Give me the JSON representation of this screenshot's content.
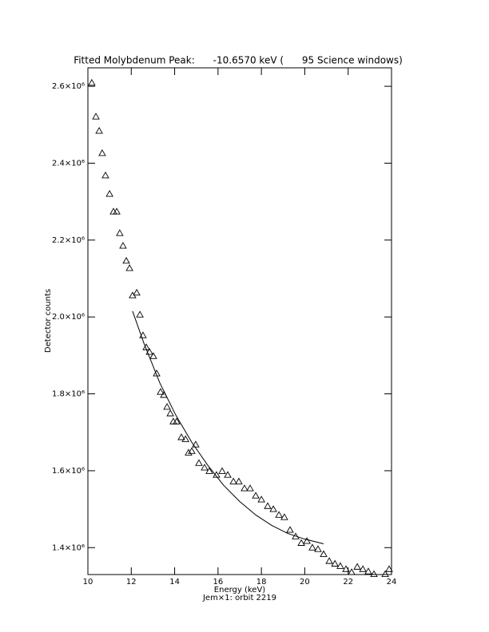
{
  "chart_data": {
    "type": "scatter",
    "title": "Fitted Molybdenum Peak:      -10.6570 keV (      95 Science windows)",
    "xlabel": "Energy (keV)",
    "caption": "Jem×1: orbit 2219",
    "ylabel": "Detector counts",
    "xlim": [
      10,
      24
    ],
    "ylim": [
      1330000,
      2648000
    ],
    "xticks": [
      10,
      12,
      14,
      16,
      18,
      20,
      22,
      24
    ],
    "yticks": [
      {
        "value": 1400000,
        "label": "1.4×10⁶"
      },
      {
        "value": 1600000,
        "label": "1.6×10⁶"
      },
      {
        "value": 1800000,
        "label": "1.8×10⁶"
      },
      {
        "value": 2000000,
        "label": "2.0×10⁶"
      },
      {
        "value": 2200000,
        "label": "2.2×10⁶"
      },
      {
        "value": 2400000,
        "label": "2.4×10⁶"
      },
      {
        "value": 2600000,
        "label": "2.6×10⁶"
      }
    ],
    "series": [
      {
        "type": "scatter",
        "marker": "triangle",
        "color": "#000000",
        "x": [
          10.18,
          10.37,
          10.52,
          10.66,
          10.81,
          11.0,
          11.18,
          11.33,
          11.47,
          11.62,
          11.77,
          11.92,
          12.06,
          12.25,
          12.4,
          12.54,
          12.69,
          12.84,
          13.02,
          13.17,
          13.35,
          13.5,
          13.65,
          13.8,
          13.94,
          14.09,
          14.31,
          14.5,
          14.64,
          14.79,
          14.97,
          15.12,
          15.38,
          15.6,
          15.93,
          16.19,
          16.45,
          16.71,
          16.96,
          17.22,
          17.48,
          17.74,
          18.0,
          18.29,
          18.55,
          18.81,
          19.06,
          19.32,
          19.58,
          19.84,
          20.1,
          20.35,
          20.61,
          20.87,
          21.13,
          21.39,
          21.64,
          21.9,
          22.16,
          22.42,
          22.68,
          22.93,
          23.19,
          23.71,
          23.89
        ],
        "values": [
          2609000,
          2521000,
          2484000,
          2426000,
          2368000,
          2320000,
          2274000,
          2274000,
          2218000,
          2185000,
          2146000,
          2127000,
          2056000,
          2063000,
          2006000,
          1952000,
          1921000,
          1909000,
          1898000,
          1853000,
          1805000,
          1797000,
          1766000,
          1749000,
          1728000,
          1728000,
          1687000,
          1682000,
          1647000,
          1651000,
          1668000,
          1620000,
          1608000,
          1599000,
          1589000,
          1599000,
          1589000,
          1572000,
          1572000,
          1554000,
          1554000,
          1535000,
          1525000,
          1508000,
          1500000,
          1485000,
          1479000,
          1446000,
          1429000,
          1412000,
          1417000,
          1400000,
          1396000,
          1383000,
          1365000,
          1358000,
          1352000,
          1344000,
          1336000,
          1350000,
          1344000,
          1338000,
          1331000,
          1331000,
          1344000
        ]
      },
      {
        "type": "line",
        "color": "#000000",
        "x": [
          12.06,
          12.58,
          13.32,
          14.05,
          14.79,
          15.53,
          16.26,
          17.0,
          17.74,
          18.47,
          19.21,
          19.95,
          20.87
        ],
        "values": [
          2015000,
          1932000,
          1828000,
          1745000,
          1674000,
          1614000,
          1562000,
          1520000,
          1485000,
          1458000,
          1437000,
          1423000,
          1410000
        ]
      }
    ]
  }
}
